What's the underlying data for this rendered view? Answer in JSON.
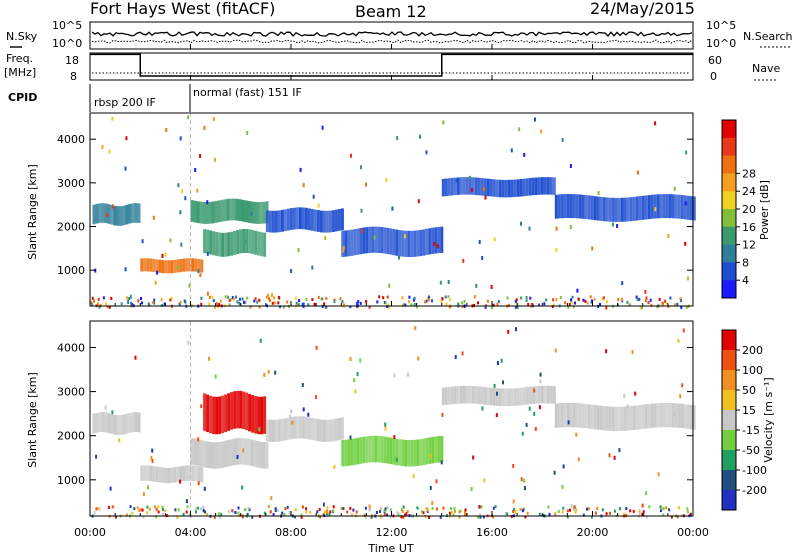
{
  "header": {
    "station": "Fort Hays West (fitACF)",
    "beam": "Beam 12",
    "date": "24/May/2015"
  },
  "summary": {
    "nsky_label": "N.Sky",
    "nsearch_label": "N.Search",
    "nsky_ticks": [
      "10^5",
      "10^0"
    ],
    "nsearch_ticks": [
      "10^5",
      "10^0"
    ],
    "freq_label": "Freq.",
    "freq_unit": "[MHz]",
    "freq_ticks": [
      "18",
      "8"
    ],
    "nave_label": "Nave",
    "nave_ticks": [
      "60",
      "0"
    ],
    "cpid_label": "CPID",
    "cpid_modes": [
      {
        "text": "rbsp 200 IF",
        "start": 0
      },
      {
        "text": "normal (fast) 151 IF",
        "start": 4
      }
    ],
    "freq_segments": [
      {
        "start": 0,
        "end": 2,
        "mhz": 17.5
      },
      {
        "start": 2,
        "end": 14,
        "mhz": 9.5
      },
      {
        "start": 14,
        "end": 24,
        "mhz": 17.5
      }
    ]
  },
  "chart_data": [
    {
      "type": "heatmap",
      "name": "power",
      "ylabel": "Slant Range [km]",
      "ylim": [
        180,
        4600
      ],
      "yticks": [
        1000,
        2000,
        3000,
        4000
      ],
      "colorbar_label": "Power [dB]",
      "colorbar_ticks": [
        "4",
        "8",
        "12",
        "16",
        "20",
        "24",
        "28"
      ],
      "colorbar_colors": [
        "#1a1aff",
        "#1e4fd0",
        "#2f7f9a",
        "#3a9a6e",
        "#7fbf3a",
        "#f0d020",
        "#f5a020",
        "#ef7010",
        "#e83818",
        "#e00000"
      ],
      "bands": [
        {
          "t0": 0.1,
          "t1": 2.0,
          "r0": 2050,
          "r1": 2500,
          "level": "#2f7f9a"
        },
        {
          "t0": 2.0,
          "t1": 4.5,
          "r0": 950,
          "r1": 1250,
          "level": "#ef7010"
        },
        {
          "t0": 4.5,
          "t1": 7.0,
          "r0": 1350,
          "r1": 1900,
          "level": "#3a9a6e"
        },
        {
          "t0": 4.0,
          "t1": 7.0,
          "r0": 2100,
          "r1": 2600,
          "level": "#3a9a6e"
        },
        {
          "t0": 7.0,
          "t1": 10.0,
          "r0": 1900,
          "r1": 2400,
          "level": "#1e4fd0"
        },
        {
          "t0": 10.0,
          "t1": 14.0,
          "r0": 1350,
          "r1": 1950,
          "level": "#1e4fd0"
        },
        {
          "t0": 14.0,
          "t1": 18.5,
          "r0": 2700,
          "r1": 3100,
          "level": "#1e4fd0"
        },
        {
          "t0": 18.5,
          "t1": 24.0,
          "r0": 2150,
          "r1": 2700,
          "level": "#1e4fd0"
        }
      ]
    },
    {
      "type": "heatmap",
      "name": "velocity",
      "ylabel": "Slant Range [km]",
      "ylim": [
        180,
        4600
      ],
      "yticks": [
        1000,
        2000,
        3000,
        4000
      ],
      "xlabel": "Time UT",
      "xlim": [
        0,
        24
      ],
      "xticks": [
        "00:00",
        "04:00",
        "08:00",
        "12:00",
        "16:00",
        "20:00",
        "00:00"
      ],
      "colorbar_label": "Velocity [m s⁻¹]",
      "colorbar_ticks": [
        "200",
        "100",
        "50",
        "15",
        "-15",
        "-50",
        "-100",
        "-200"
      ],
      "colorbar_colors": [
        "#2030c0",
        "#205080",
        "#20a060",
        "#70d040",
        "#c8c8c8",
        "#f0c020",
        "#f09020",
        "#f05010",
        "#e00000"
      ],
      "bands": [
        {
          "t0": 0.1,
          "t1": 2.0,
          "r0": 2050,
          "r1": 2500,
          "level": "#c8c8c8"
        },
        {
          "t0": 2.0,
          "t1": 4.5,
          "r0": 950,
          "r1": 1300,
          "level": "#c8c8c8"
        },
        {
          "t0": 4.0,
          "t1": 7.0,
          "r0": 1300,
          "r1": 1900,
          "level": "#c8c8c8"
        },
        {
          "t0": 4.5,
          "t1": 7.0,
          "r0": 2100,
          "r1": 2950,
          "level": "#e00000"
        },
        {
          "t0": 7.0,
          "t1": 10.0,
          "r0": 1900,
          "r1": 2400,
          "level": "#c8c8c8"
        },
        {
          "t0": 10.0,
          "t1": 14.0,
          "r0": 1350,
          "r1": 1950,
          "level": "#70d040"
        },
        {
          "t0": 14.0,
          "t1": 18.5,
          "r0": 2700,
          "r1": 3100,
          "level": "#c8c8c8"
        },
        {
          "t0": 18.5,
          "t1": 24.0,
          "r0": 2150,
          "r1": 2700,
          "level": "#c8c8c8"
        }
      ]
    }
  ]
}
